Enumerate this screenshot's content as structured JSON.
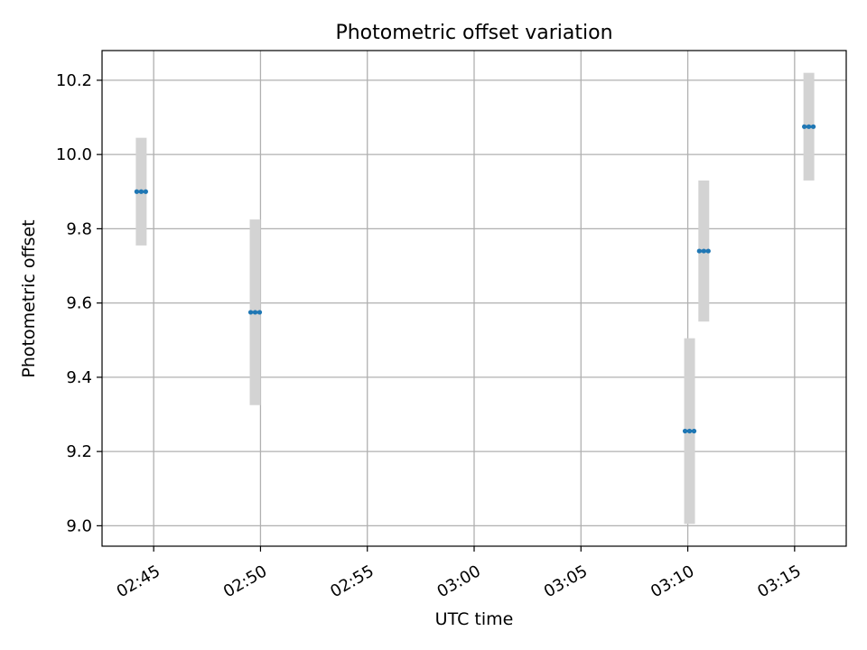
{
  "chart_data": {
    "type": "scatter",
    "title": "Photometric offset variation",
    "xlabel": "UTC time",
    "ylabel": "Photometric offset",
    "xlim": [
      "02:42:35",
      "03:17:25"
    ],
    "ylim": [
      8.945,
      10.28
    ],
    "x_ticks": [
      "02:45",
      "02:50",
      "02:55",
      "03:00",
      "03:05",
      "03:10",
      "03:15"
    ],
    "y_ticks": [
      "9.0",
      "9.2",
      "9.4",
      "9.6",
      "9.8",
      "10.0",
      "10.2"
    ],
    "grid": true,
    "colors": {
      "point": "#1f77b4",
      "errorbar": "#d3d3d3",
      "grid": "#b0b0b0",
      "axes": "#000000"
    },
    "points": [
      {
        "x": "02:44:25",
        "y": 9.9,
        "err": 0.145
      },
      {
        "x": "02:49:45",
        "y": 9.575,
        "err": 0.25
      },
      {
        "x": "03:10:05",
        "y": 9.255,
        "err": 0.25
      },
      {
        "x": "03:10:45",
        "y": 9.74,
        "err": 0.19
      },
      {
        "x": "03:15:40",
        "y": 10.075,
        "err": 0.145
      }
    ]
  }
}
